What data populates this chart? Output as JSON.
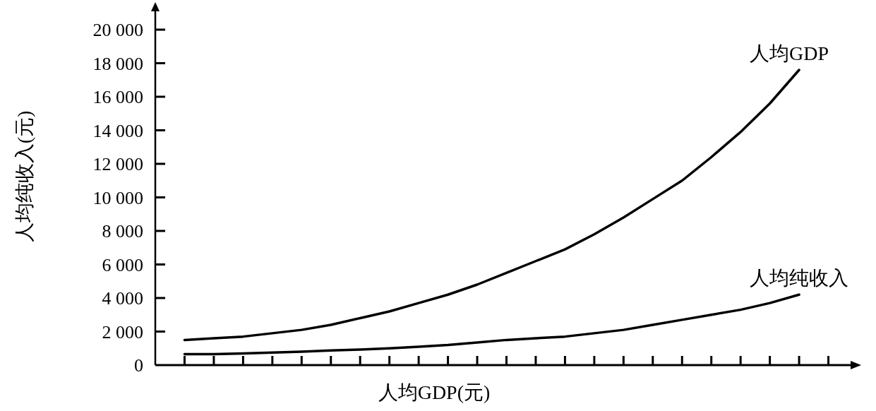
{
  "chart_data": {
    "type": "line",
    "xlabel": "人均GDP(元)",
    "ylabel": "人均纯收入(元)",
    "categories": [
      null,
      null,
      null,
      null,
      null,
      null,
      null,
      null,
      null,
      null,
      null,
      null,
      null,
      null,
      null,
      null,
      null,
      null,
      null,
      null,
      null,
      null,
      null
    ],
    "series": [
      {
        "name": "人均GDP",
        "color": "#000000",
        "values": [
          1500,
          1600,
          1700,
          1900,
          2100,
          2400,
          2800,
          3200,
          3700,
          4200,
          4800,
          5500,
          6200,
          6900,
          7800,
          8800,
          9900,
          11000,
          12400,
          13900,
          15600,
          17600,
          null
        ]
      },
      {
        "name": "人均纯收入",
        "color": "#000000",
        "values": [
          650,
          650,
          700,
          750,
          800,
          870,
          930,
          1000,
          1100,
          1200,
          1350,
          1500,
          1600,
          1700,
          1900,
          2100,
          2400,
          2700,
          3000,
          3300,
          3700,
          4200,
          null
        ]
      }
    ],
    "ylim": [
      0,
      20000
    ],
    "yticks": [
      0,
      {
        "value": 2000,
        "label": "2 000"
      },
      {
        "value": 4000,
        "label": "4 000"
      },
      {
        "value": 6000,
        "label": "6 000"
      },
      {
        "value": 8000,
        "label": "8 000"
      },
      {
        "value": 10000,
        "label": "10 000"
      },
      {
        "value": 12000,
        "label": "12 000"
      },
      {
        "value": 14000,
        "label": "14 000"
      },
      {
        "value": 16000,
        "label": "16 000"
      },
      {
        "value": 18000,
        "label": "18 000"
      },
      {
        "value": 20000,
        "label": "20 000"
      }
    ],
    "tick_labels": "y",
    "marker": "none",
    "line_style": "solid",
    "grid": false
  }
}
